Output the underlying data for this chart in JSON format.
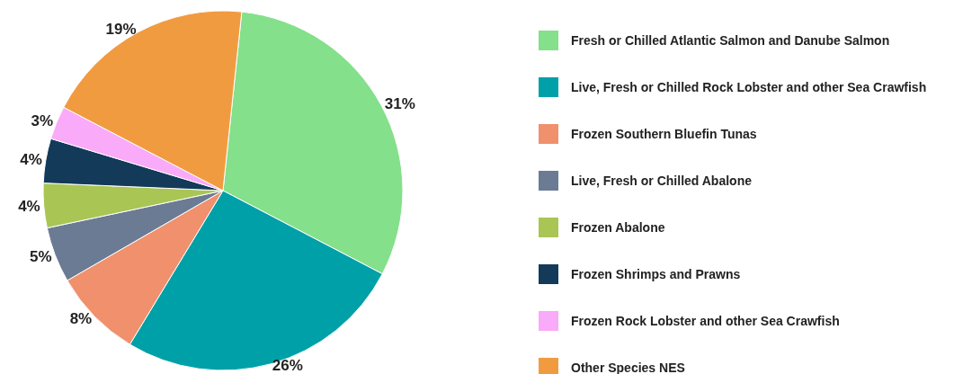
{
  "chart_data": {
    "type": "pie",
    "categories": [
      "Fresh or Chilled Atlantic Salmon and Danube Salmon",
      "Live, Fresh or Chilled Rock Lobster and other Sea Crawfish",
      "Frozen Southern Bluefin Tunas",
      "Live, Fresh or Chilled Abalone",
      "Frozen Abalone",
      "Frozen Shrimps and Prawns",
      "Frozen Rock Lobster and other Sea Crawfish",
      "Other Species NES"
    ],
    "values": [
      31,
      26,
      8,
      5,
      4,
      4,
      3,
      19
    ],
    "value_labels": [
      "31%",
      "26%",
      "8%",
      "5%",
      "4%",
      "4%",
      "3%",
      "19%"
    ],
    "colors": [
      "#84e08a",
      "#00a0a8",
      "#f0906d",
      "#6b7b94",
      "#a9c554",
      "#143a5a",
      "#f9aaf8",
      "#f19b41"
    ],
    "legend": "right"
  }
}
